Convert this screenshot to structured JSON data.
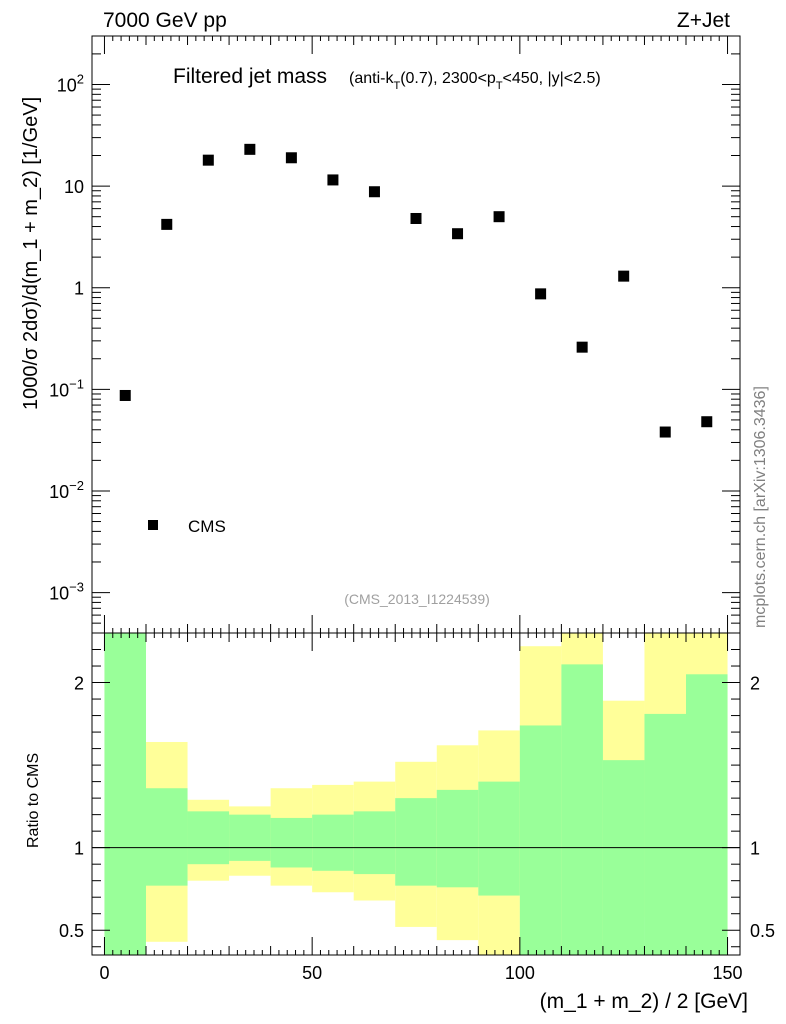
{
  "header": {
    "energy_label": "7000 GeV pp",
    "process_label": "Z+Jet",
    "side_label": "mcplots.cern.ch [arXiv:1306.3436]",
    "analysis_label": "(CMS_2013_I1224539)"
  },
  "chart_data": [
    {
      "type": "scatter",
      "role": "main",
      "title_main": "Filtered jet mass",
      "title_sub_parts": [
        "(anti-k",
        "T",
        "(0.7), 2300<p",
        "T",
        "<450, |y|<2.5)"
      ],
      "ylabel": "1000/σ 2dσ)/d(m_1 + m_2) [1/GeV]",
      "yscale": "log",
      "ylim": [
        0.0004,
        300
      ],
      "xlim": [
        -3,
        153
      ],
      "ytick_labels": [
        {
          "value": 0.001,
          "base": "10",
          "exp": "−3"
        },
        {
          "value": 0.01,
          "base": "10",
          "exp": "−2"
        },
        {
          "value": 0.1,
          "base": "10",
          "exp": "−1"
        },
        {
          "value": 1,
          "base": "1",
          "exp": ""
        },
        {
          "value": 10,
          "base": "10",
          "exp": ""
        },
        {
          "value": 100,
          "base": "10",
          "exp": "2"
        }
      ],
      "legend": [
        {
          "name": "CMS",
          "marker": "square",
          "placement": "bottom-left"
        }
      ],
      "series": [
        {
          "name": "CMS",
          "x": [
            5,
            15,
            25,
            35,
            45,
            55,
            65,
            75,
            85,
            95,
            105,
            115,
            125,
            135,
            145
          ],
          "y": [
            0.087,
            4.2,
            18,
            23,
            19,
            11.5,
            8.8,
            4.8,
            3.4,
            5.0,
            0.87,
            0.26,
            1.3,
            0.038,
            0.048
          ]
        }
      ]
    },
    {
      "type": "area",
      "role": "ratio",
      "ylabel": "Ratio to CMS",
      "xlabel": "(m_1 + m_2) / 2 [GeV]",
      "ylim": [
        0.35,
        2.3
      ],
      "xlim": [
        -3,
        153
      ],
      "xticks": [
        0,
        50,
        100,
        150
      ],
      "yticks": [
        0.5,
        1,
        2
      ],
      "reference_line": 1,
      "bin_edges": [
        0,
        10,
        20,
        30,
        40,
        50,
        60,
        70,
        80,
        90,
        100,
        110,
        120,
        130,
        140,
        150
      ],
      "inner_band": {
        "color": "#99ff99",
        "upper": [
          2.3,
          1.36,
          1.22,
          1.2,
          1.18,
          1.2,
          1.22,
          1.3,
          1.35,
          1.4,
          1.74,
          2.11,
          1.53,
          1.81,
          2.05
        ],
        "lower": [
          0.35,
          0.77,
          0.9,
          0.92,
          0.88,
          0.86,
          0.84,
          0.77,
          0.76,
          0.71,
          0.35,
          0.35,
          0.35,
          0.35,
          0.35
        ]
      },
      "outer_band": {
        "color": "#ffff99",
        "upper": [
          2.3,
          1.64,
          1.29,
          1.25,
          1.36,
          1.38,
          1.4,
          1.52,
          1.62,
          1.71,
          2.22,
          2.3,
          1.89,
          2.3,
          2.3
        ],
        "lower": [
          0.35,
          0.43,
          0.8,
          0.83,
          0.77,
          0.73,
          0.68,
          0.52,
          0.44,
          0.35,
          0.35,
          0.35,
          0.58,
          0.35,
          0.35
        ]
      }
    }
  ]
}
